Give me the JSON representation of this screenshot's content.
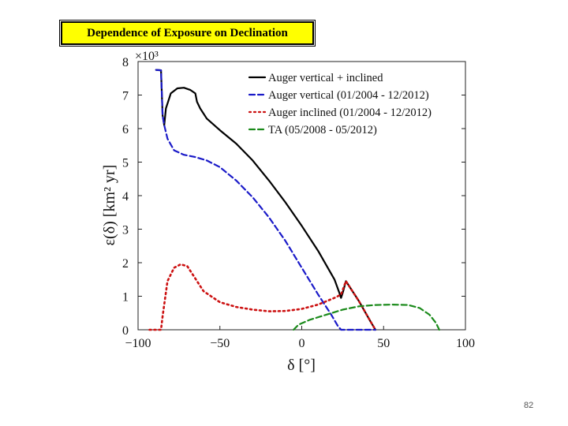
{
  "slide": {
    "title": "Dependence of Exposure on Declination",
    "page_number": "82"
  },
  "chart_data": {
    "type": "line",
    "xlabel": "δ [°]",
    "ylabel": "ε(δ) [km² yr]",
    "y_multiplier": "×10³",
    "xlim": [
      -100,
      100
    ],
    "ylim": [
      0,
      8
    ],
    "x_ticks": [
      -100,
      -50,
      0,
      50,
      100
    ],
    "x_tick_labels": [
      "−100",
      "−50",
      "0",
      "50",
      "100"
    ],
    "y_ticks": [
      0,
      1,
      2,
      3,
      4,
      5,
      6,
      7,
      8
    ],
    "y_tick_labels": [
      "0",
      "1",
      "2",
      "3",
      "4",
      "5",
      "6",
      "7",
      "8"
    ],
    "legend_position": "top-right",
    "series": [
      {
        "name": "Auger vertical + inclined",
        "color": "#000000",
        "style": "solid",
        "points": [
          [
            -89,
            7.75
          ],
          [
            -86,
            7.74
          ],
          [
            -85,
            6.4
          ],
          [
            -84,
            6.1
          ],
          [
            -83,
            6.6
          ],
          [
            -80,
            7.05
          ],
          [
            -76,
            7.2
          ],
          [
            -72,
            7.22
          ],
          [
            -68,
            7.15
          ],
          [
            -65,
            7.05
          ],
          [
            -64,
            6.8
          ],
          [
            -62,
            6.6
          ],
          [
            -58,
            6.3
          ],
          [
            -50,
            5.95
          ],
          [
            -40,
            5.55
          ],
          [
            -30,
            5.05
          ],
          [
            -20,
            4.45
          ],
          [
            -10,
            3.8
          ],
          [
            0,
            3.1
          ],
          [
            10,
            2.35
          ],
          [
            20,
            1.5
          ],
          [
            23,
            1.1
          ],
          [
            24,
            0.95
          ],
          [
            25,
            1.1
          ],
          [
            27,
            1.45
          ],
          [
            35,
            0.85
          ],
          [
            42,
            0.25
          ],
          [
            45,
            0.0
          ]
        ]
      },
      {
        "name": "Auger vertical (01/2004 - 12/2012)",
        "color": "#1a1ac8",
        "style": "dashed",
        "points": [
          [
            -89,
            7.75
          ],
          [
            -86,
            7.74
          ],
          [
            -85,
            6.4
          ],
          [
            -84,
            6.1
          ],
          [
            -82,
            5.7
          ],
          [
            -78,
            5.35
          ],
          [
            -72,
            5.22
          ],
          [
            -65,
            5.15
          ],
          [
            -58,
            5.05
          ],
          [
            -50,
            4.85
          ],
          [
            -40,
            4.45
          ],
          [
            -30,
            3.95
          ],
          [
            -20,
            3.35
          ],
          [
            -10,
            2.65
          ],
          [
            0,
            1.85
          ],
          [
            10,
            1.05
          ],
          [
            18,
            0.45
          ],
          [
            22,
            0.12
          ],
          [
            24,
            0.0
          ],
          [
            45,
            0.0
          ]
        ]
      },
      {
        "name": "Auger inclined (01/2004 - 12/2012)",
        "color": "#cc1111",
        "style": "dotted",
        "points": [
          [
            -93,
            0.0
          ],
          [
            -86,
            0.0
          ],
          [
            -85,
            0.4
          ],
          [
            -82,
            1.45
          ],
          [
            -78,
            1.85
          ],
          [
            -74,
            1.95
          ],
          [
            -70,
            1.9
          ],
          [
            -66,
            1.6
          ],
          [
            -60,
            1.15
          ],
          [
            -50,
            0.82
          ],
          [
            -40,
            0.68
          ],
          [
            -30,
            0.6
          ],
          [
            -20,
            0.55
          ],
          [
            -10,
            0.56
          ],
          [
            0,
            0.62
          ],
          [
            10,
            0.75
          ],
          [
            20,
            0.95
          ],
          [
            24,
            1.05
          ],
          [
            27,
            1.45
          ],
          [
            35,
            0.85
          ],
          [
            42,
            0.25
          ],
          [
            45,
            0.0
          ]
        ]
      },
      {
        "name": "TA (05/2008 - 05/2012)",
        "color": "#1a8a1a",
        "style": "dashed",
        "points": [
          [
            -5,
            0.0
          ],
          [
            -2,
            0.15
          ],
          [
            5,
            0.3
          ],
          [
            15,
            0.45
          ],
          [
            25,
            0.6
          ],
          [
            35,
            0.7
          ],
          [
            45,
            0.74
          ],
          [
            55,
            0.75
          ],
          [
            65,
            0.74
          ],
          [
            72,
            0.65
          ],
          [
            78,
            0.45
          ],
          [
            82,
            0.2
          ],
          [
            84,
            0.0
          ]
        ]
      }
    ]
  }
}
